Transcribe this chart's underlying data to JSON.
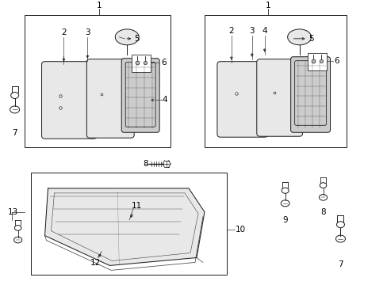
{
  "bg_color": "#ffffff",
  "line_color": "#1a1a1a",
  "fig_width": 4.89,
  "fig_height": 3.6,
  "dpi": 100,
  "gray_light": "#e8e8e8",
  "gray_mid": "#cccccc",
  "gray_dark": "#aaaaaa"
}
